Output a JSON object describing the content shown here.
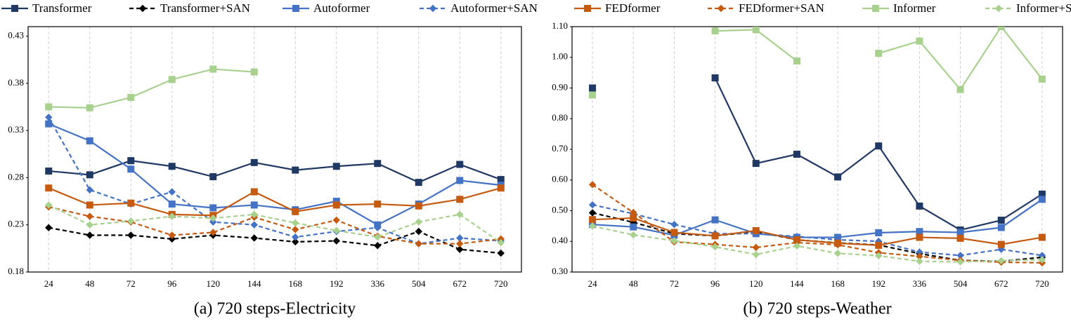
{
  "chart_data": [
    {
      "type": "line",
      "caption": "(a) 720 steps-Electricity",
      "categories": [
        "24",
        "48",
        "72",
        "96",
        "120",
        "144",
        "168",
        "192",
        "336",
        "504",
        "672",
        "720"
      ],
      "ylim": [
        0.18,
        0.44
      ],
      "yticks": [
        0.18,
        0.23,
        0.28,
        0.33,
        0.38,
        0.43
      ],
      "grid": true,
      "series": [
        {
          "name": "Transformer",
          "color": "#1f3864",
          "dash": false,
          "marker": "square",
          "values": [
            0.287,
            0.283,
            0.298,
            0.292,
            0.281,
            0.296,
            0.288,
            0.292,
            0.295,
            0.275,
            0.294,
            0.278
          ]
        },
        {
          "name": "Transformer+SAN",
          "color": "#000000",
          "dash": true,
          "marker": "diamond",
          "values": [
            0.227,
            0.219,
            0.219,
            0.215,
            0.219,
            0.216,
            0.212,
            0.213,
            0.208,
            0.223,
            0.204,
            0.2
          ]
        },
        {
          "name": "Autoformer",
          "color": "#4472c4",
          "dash": false,
          "marker": "square",
          "values": [
            0.337,
            0.319,
            0.289,
            0.252,
            0.248,
            0.251,
            0.246,
            0.255,
            0.23,
            0.252,
            0.277,
            0.272
          ]
        },
        {
          "name": "Autoformer+SAN",
          "color": "#4472c4",
          "dash": true,
          "marker": "diamond",
          "values": [
            0.344,
            0.267,
            0.252,
            0.265,
            0.233,
            0.23,
            0.217,
            0.223,
            0.227,
            0.21,
            0.216,
            0.213
          ]
        },
        {
          "name": "FEDformer",
          "color": "#c55a11",
          "dash": false,
          "marker": "square",
          "values": [
            0.269,
            0.251,
            0.253,
            0.241,
            0.24,
            0.265,
            0.244,
            0.251,
            0.252,
            0.25,
            0.257,
            0.269
          ]
        },
        {
          "name": "FEDformer+SAN",
          "color": "#c55a11",
          "dash": true,
          "marker": "diamond",
          "values": [
            0.249,
            0.239,
            0.233,
            0.219,
            0.222,
            0.238,
            0.225,
            0.235,
            0.218,
            0.21,
            0.21,
            0.215
          ]
        },
        {
          "name": "Informer",
          "color": "#a9d18e",
          "dash": false,
          "marker": "square",
          "values": [
            0.355,
            0.354,
            0.365,
            0.384,
            0.395,
            0.392,
            null,
            null,
            null,
            null,
            null,
            null
          ]
        },
        {
          "name": "Informer+SAN",
          "color": "#a9d18e",
          "dash": true,
          "marker": "diamond",
          "values": [
            0.251,
            0.23,
            0.234,
            0.239,
            0.237,
            0.241,
            0.232,
            0.224,
            0.217,
            0.233,
            0.241,
            0.211
          ]
        }
      ]
    },
    {
      "type": "line",
      "caption": "(b) 720 steps-Weather",
      "categories": [
        "24",
        "48",
        "72",
        "96",
        "120",
        "144",
        "168",
        "192",
        "336",
        "504",
        "672",
        "720"
      ],
      "ylim": [
        0.3,
        1.1
      ],
      "yticks": [
        {
          "value": 0.3,
          "label": "0.30"
        },
        {
          "value": 0.4,
          "label": "0.40"
        },
        {
          "value": 0.5,
          "label": "0.50"
        },
        {
          "value": 0.6,
          "label": "0.60"
        },
        {
          "value": 0.7,
          "label": "0.70"
        },
        {
          "value": 0.8,
          "label": "0.80"
        },
        {
          "value": 0.9,
          "label": "0.90"
        },
        {
          "value": 1.0,
          "label": "1.00"
        },
        {
          "value": 1.1,
          "label": "1.10"
        }
      ],
      "grid": true,
      "series": [
        {
          "color": "#1f3864",
          "dash": false,
          "marker": "square",
          "values": [
            0.9,
            null,
            null,
            0.933,
            0.654,
            0.684,
            0.61,
            0.711,
            0.515,
            0.437,
            0.469,
            0.554
          ]
        },
        {
          "color": "#000000",
          "dash": true,
          "marker": "diamond",
          "values": [
            0.493,
            0.462,
            0.425,
            0.418,
            0.432,
            0.405,
            0.395,
            0.388,
            0.36,
            0.338,
            0.335,
            0.348
          ]
        },
        {
          "color": "#4472c4",
          "dash": false,
          "marker": "square",
          "values": [
            0.455,
            0.447,
            0.42,
            0.47,
            0.425,
            0.413,
            0.413,
            0.428,
            0.432,
            0.429,
            0.445,
            0.537
          ]
        },
        {
          "color": "#4472c4",
          "dash": true,
          "marker": "diamond",
          "values": [
            0.519,
            0.49,
            0.455,
            0.425,
            0.425,
            0.416,
            0.405,
            0.4,
            0.365,
            0.354,
            0.374,
            0.354
          ]
        },
        {
          "color": "#c55a11",
          "dash": false,
          "marker": "square",
          "values": [
            0.471,
            0.476,
            0.429,
            0.418,
            0.435,
            0.405,
            0.394,
            0.387,
            0.413,
            0.41,
            0.39,
            0.413
          ]
        },
        {
          "color": "#c55a11",
          "dash": true,
          "marker": "diamond",
          "values": [
            0.585,
            0.494,
            0.398,
            0.39,
            0.38,
            0.396,
            0.389,
            0.363,
            0.351,
            0.338,
            0.332,
            0.33
          ]
        },
        {
          "color": "#a9d18e",
          "dash": false,
          "marker": "square",
          "values": [
            0.877,
            null,
            null,
            1.086,
            1.09,
            0.988,
            null,
            1.013,
            1.053,
            0.895,
            1.1,
            0.929
          ]
        },
        {
          "color": "#a9d18e",
          "dash": true,
          "marker": "diamond",
          "values": [
            0.45,
            0.421,
            0.402,
            0.382,
            0.357,
            0.385,
            0.361,
            0.353,
            0.335,
            0.333,
            0.337,
            0.34
          ]
        }
      ]
    }
  ]
}
